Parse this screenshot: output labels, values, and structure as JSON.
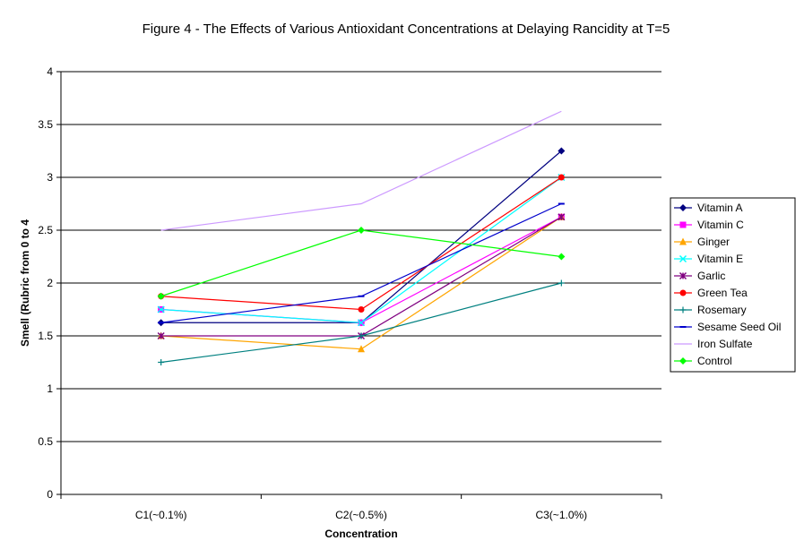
{
  "chart_data": {
    "type": "line",
    "title": "Figure 4 - The Effects of Various Antioxidant Concentrations at Delaying Rancidity at T=5",
    "xlabel": "Concentration",
    "ylabel": "Smell (Rubric from 0 to 4",
    "categories": [
      "C1(~0.1%)",
      "C2(~0.5%)",
      "C3(~1.0%)"
    ],
    "ylim": [
      0,
      4
    ],
    "yticks": [
      "0",
      "0.5",
      "1",
      "1.5",
      "2",
      "2.5",
      "3",
      "3.5",
      "4"
    ],
    "grid": "horizontal",
    "legend_position": "right",
    "series": [
      {
        "name": "Vitamin A",
        "values": [
          1.625,
          1.625,
          3.25
        ],
        "color": "#000080",
        "marker": "diamond"
      },
      {
        "name": "Vitamin C",
        "values": [
          1.75,
          1.625,
          2.625
        ],
        "color": "#ff00ff",
        "marker": "square"
      },
      {
        "name": "Ginger",
        "values": [
          1.5,
          1.375,
          2.625
        ],
        "color": "#ffa500",
        "marker": "triangle"
      },
      {
        "name": "Vitamin E",
        "values": [
          1.75,
          1.625,
          3.0
        ],
        "color": "#00ffff",
        "marker": "x"
      },
      {
        "name": "Garlic",
        "values": [
          1.5,
          1.5,
          2.625
        ],
        "color": "#800080",
        "marker": "star"
      },
      {
        "name": "Green Tea",
        "values": [
          1.875,
          1.75,
          3.0
        ],
        "color": "#ff0000",
        "marker": "circle"
      },
      {
        "name": "Rosemary",
        "values": [
          1.25,
          1.5,
          2.0
        ],
        "color": "#008080",
        "marker": "plus"
      },
      {
        "name": "Sesame Seed Oil",
        "values": [
          1.625,
          1.875,
          2.75
        ],
        "color": "#0000cc",
        "marker": "dash"
      },
      {
        "name": "Iron Sulfate",
        "values": [
          2.5,
          2.75,
          3.625
        ],
        "color": "#cc99ff",
        "marker": "none"
      },
      {
        "name": "Control",
        "values": [
          1.875,
          2.5,
          2.25
        ],
        "color": "#00ff00",
        "marker": "diamond"
      }
    ]
  }
}
